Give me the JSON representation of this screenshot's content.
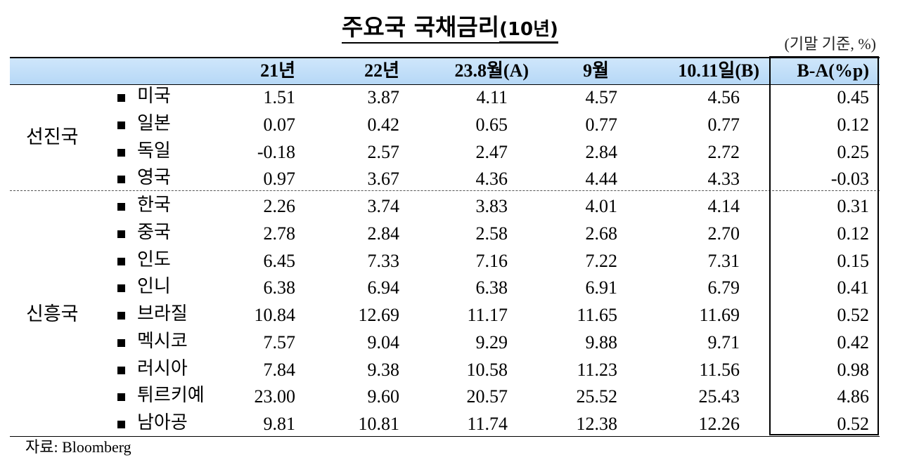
{
  "title": "주요국 국채금리",
  "title_suffix": "(10년)",
  "unit_note": "(기말 기준, %)",
  "table": {
    "columns": [
      "21년",
      "22년",
      "23.8월(A)",
      "9월",
      "10.11일(B)",
      "B-A(%p)"
    ],
    "groups": [
      {
        "label": "선진국",
        "rows": [
          {
            "name": "미국",
            "values": [
              "1.51",
              "3.87",
              "4.11",
              "4.57",
              "4.56",
              "0.45"
            ]
          },
          {
            "name": "일본",
            "values": [
              "0.07",
              "0.42",
              "0.65",
              "0.77",
              "0.77",
              "0.12"
            ]
          },
          {
            "name": "독일",
            "values": [
              "-0.18",
              "2.57",
              "2.47",
              "2.84",
              "2.72",
              "0.25"
            ]
          },
          {
            "name": "영국",
            "values": [
              "0.97",
              "3.67",
              "4.36",
              "4.44",
              "4.33",
              "-0.03"
            ]
          }
        ]
      },
      {
        "label": "신흥국",
        "rows": [
          {
            "name": "한국",
            "values": [
              "2.26",
              "3.74",
              "3.83",
              "4.01",
              "4.14",
              "0.31"
            ]
          },
          {
            "name": "중국",
            "values": [
              "2.78",
              "2.84",
              "2.58",
              "2.68",
              "2.70",
              "0.12"
            ]
          },
          {
            "name": "인도",
            "values": [
              "6.45",
              "7.33",
              "7.16",
              "7.22",
              "7.31",
              "0.15"
            ]
          },
          {
            "name": "인니",
            "values": [
              "6.38",
              "6.94",
              "6.38",
              "6.91",
              "6.79",
              "0.41"
            ]
          },
          {
            "name": "브라질",
            "values": [
              "10.84",
              "12.69",
              "11.17",
              "11.65",
              "11.69",
              "0.52"
            ]
          },
          {
            "name": "멕시코",
            "values": [
              "7.57",
              "9.04",
              "9.29",
              "9.88",
              "9.71",
              "0.42"
            ]
          },
          {
            "name": "러시아",
            "values": [
              "7.84",
              "9.38",
              "10.58",
              "11.23",
              "11.56",
              "0.98"
            ]
          },
          {
            "name": "튀르키예",
            "values": [
              "23.00",
              "9.60",
              "20.57",
              "25.52",
              "25.43",
              "4.86"
            ]
          },
          {
            "name": "남아공",
            "values": [
              "9.81",
              "10.81",
              "11.74",
              "12.38",
              "12.26",
              "0.52"
            ]
          }
        ]
      }
    ]
  },
  "source": "자료: Bloomberg"
}
